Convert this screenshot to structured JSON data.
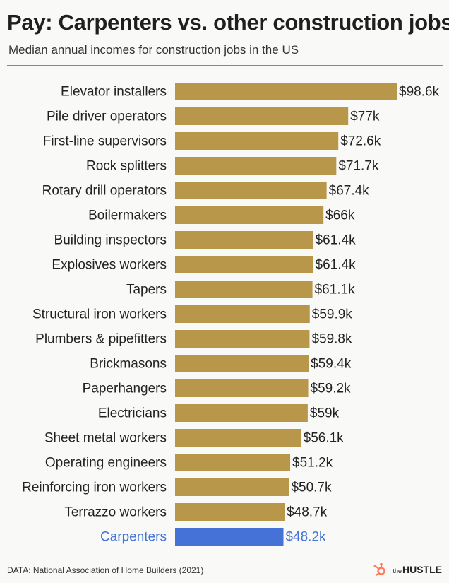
{
  "header": {
    "title": "Pay: Carpenters vs. other construction jobs",
    "subtitle": "Median annual incomes for construction jobs in the US"
  },
  "footer": {
    "source": "DATA: National Association of Home Builders (2021)",
    "brand_prefix": "the",
    "brand_name": "HUSTLE"
  },
  "colors": {
    "bar": "#b8974a",
    "highlight": "#4472d6",
    "text": "#222222"
  },
  "chart_data": {
    "type": "bar",
    "orientation": "horizontal",
    "categories": [
      "Elevator installers",
      "Pile driver operators",
      "First-line supervisors",
      "Rock splitters",
      "Rotary drill operators",
      "Boilermakers",
      "Building inspectors",
      "Explosives workers",
      "Tapers",
      "Structural iron workers",
      "Plumbers & pipefitters",
      "Brickmasons",
      "Paperhangers",
      "Electricians",
      "Sheet metal workers",
      "Operating engineers",
      "Reinforcing iron workers",
      "Terrazzo workers",
      "Carpenters"
    ],
    "values": [
      98.6,
      77,
      72.6,
      71.7,
      67.4,
      66,
      61.4,
      61.4,
      61.1,
      59.9,
      59.8,
      59.4,
      59.2,
      59,
      56.1,
      51.2,
      50.7,
      48.7,
      48.2
    ],
    "value_labels": [
      "$98.6k",
      "$77k",
      "$72.6k",
      "$71.7k",
      "$67.4k",
      "$66k",
      "$61.4k",
      "$61.4k",
      "$61.1k",
      "$59.9k",
      "$59.8k",
      "$59.4k",
      "$59.2k",
      "$59k",
      "$56.1k",
      "$51.2k",
      "$50.7k",
      "$48.7k",
      "$48.2k"
    ],
    "highlight": "Carpenters",
    "grid": false,
    "legend": "none"
  }
}
